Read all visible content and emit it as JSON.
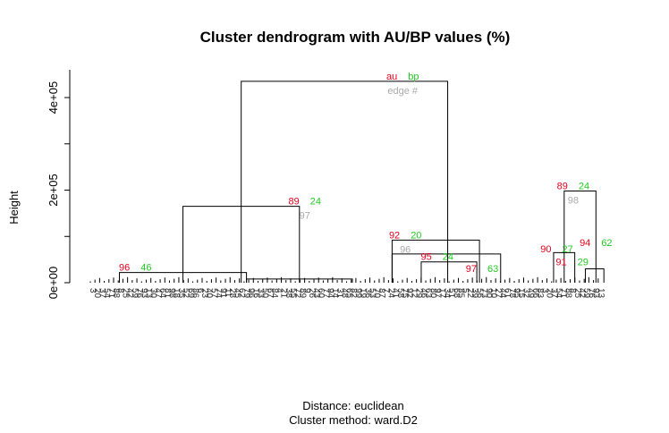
{
  "chart_data": {
    "type": "dendrogram",
    "title": "Cluster dendrogram with AU/BP values (%)",
    "ylabel": "Height",
    "subtitle_distance": "Distance:  euclidean",
    "subtitle_method": "Cluster method: ward.D2",
    "ylim": [
      0,
      460000
    ],
    "y_ticks": [
      {
        "value": 0,
        "label": "0e+00"
      },
      {
        "value": 200000,
        "label": "2e+05"
      },
      {
        "value": 400000,
        "label": "4e+05"
      }
    ],
    "legend": {
      "au": "au",
      "bp": "bp",
      "edge": "edge #"
    },
    "colors": {
      "au": "#e8001c",
      "bp": "#22cc22",
      "edge": "#aaaaaa"
    },
    "merges": [
      {
        "left": 0.06,
        "right": 0.3,
        "height": 22000,
        "children_left": null,
        "children_right": null
      },
      {
        "left": 0.3,
        "right": 0.5,
        "height": 8000,
        "children_left": null,
        "children_right": null
      },
      {
        "left": 0.18,
        "right": 0.4,
        "height": 165000
      },
      {
        "left": 0.575,
        "right": 0.74,
        "height": 92000
      },
      {
        "left": 0.63,
        "right": 0.735,
        "height": 45000
      },
      {
        "left": 0.575,
        "right": 0.78,
        "height": 62000
      },
      {
        "left": 0.29,
        "right": 0.68,
        "height": 435000
      },
      {
        "left": 0.9,
        "right": 0.96,
        "height": 198000
      },
      {
        "left": 0.88,
        "right": 0.92,
        "height": 65000
      },
      {
        "left": 0.94,
        "right": 0.975,
        "height": 30000
      }
    ],
    "node_labels": [
      {
        "x": 0.595,
        "height": 435000,
        "au": "au",
        "bp": "bp",
        "edge": "edge #"
      },
      {
        "x": 0.41,
        "height": 165000,
        "au": "89",
        "bp": "24",
        "edge": "97"
      },
      {
        "x": 0.09,
        "height": 22000,
        "au": "96",
        "bp": "46",
        "edge": ""
      },
      {
        "x": 0.6,
        "height": 92000,
        "au": "92",
        "bp": "20",
        "edge": "96"
      },
      {
        "x": 0.66,
        "height": 45000,
        "au": "95",
        "bp": "24",
        "edge": ""
      },
      {
        "x": 0.745,
        "height": 19000,
        "au": "97",
        "bp": "63",
        "edge": ""
      },
      {
        "x": 0.917,
        "height": 198000,
        "au": "89",
        "bp": "24",
        "edge": "98"
      },
      {
        "x": 0.96,
        "height": 75000,
        "au": "94",
        "bp": "62",
        "edge": ""
      },
      {
        "x": 0.886,
        "height": 62000,
        "au": "90",
        "bp": "27",
        "edge": ""
      },
      {
        "x": 0.915,
        "height": 34000,
        "au": "91",
        "bp": "29",
        "edge": ""
      }
    ]
  }
}
